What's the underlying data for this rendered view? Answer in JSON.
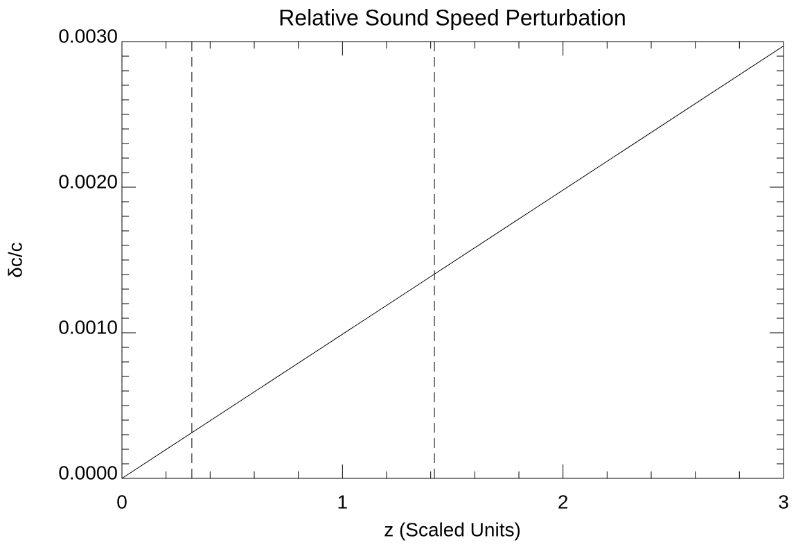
{
  "chart_data": {
    "type": "line",
    "title": "Relative Sound Speed Perturbation",
    "x_label": "z (Scaled Units)",
    "y_label": "δc/c",
    "series": [
      {
        "x": [
          0,
          3
        ],
        "values": [
          0,
          0.00297
        ],
        "color": "#000000"
      }
    ],
    "vlines": [
      0.317,
      1.417
    ],
    "xlim": [
      0,
      3
    ],
    "xticks": [
      0,
      1,
      2,
      3
    ],
    "xminor": 5,
    "ylim": [
      0,
      0.003
    ],
    "yticks": [
      {
        "value": 0,
        "label": "0.0000"
      },
      {
        "value": 0.001,
        "label": "0.0010"
      },
      {
        "value": 0.002,
        "label": "0.0020"
      },
      {
        "value": 0.003,
        "label": "0.0030"
      }
    ],
    "yminor": 10,
    "grid": false
  }
}
